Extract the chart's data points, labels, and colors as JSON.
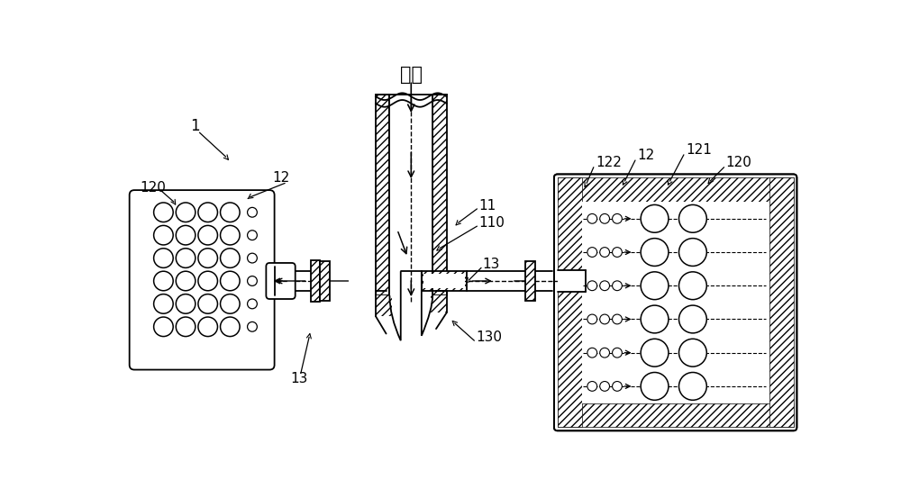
{
  "bg_color": "#ffffff",
  "lc": "#000000",
  "title": "气体",
  "label_1": "1",
  "label_11": "11",
  "label_110": "110",
  "label_12_left": "12",
  "label_120_left": "120",
  "label_121": "121",
  "label_122": "122",
  "label_12_right": "12",
  "label_120_right": "120",
  "label_13_left": "13",
  "label_13_center": "13",
  "label_130": "130",
  "fs": 11,
  "fs_title": 15
}
